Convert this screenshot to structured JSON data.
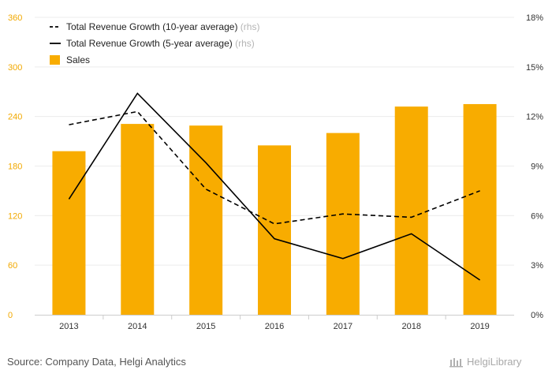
{
  "chart_data": {
    "type": "bar",
    "categories": [
      "2013",
      "2014",
      "2015",
      "2016",
      "2017",
      "2018",
      "2019"
    ],
    "series": [
      {
        "name": "Sales",
        "kind": "bar",
        "axis": "left",
        "color": "#f8ac00",
        "values": [
          198,
          231,
          229,
          205,
          220,
          252,
          255
        ]
      },
      {
        "name": "Total Revenue Growth (10-year average)",
        "kind": "line",
        "style": "dashed",
        "axis": "right",
        "color": "#000000",
        "values": [
          11.5,
          12.3,
          7.6,
          5.5,
          6.1,
          5.9,
          7.5
        ]
      },
      {
        "name": "Total Revenue Growth (5-year average)",
        "kind": "line",
        "style": "solid",
        "axis": "right",
        "color": "#000000",
        "values": [
          7.0,
          13.4,
          9.2,
          4.6,
          3.4,
          4.9,
          2.1
        ]
      }
    ],
    "left_axis": {
      "range": [
        0,
        360
      ],
      "ticks": [
        "0",
        "60",
        "120",
        "180",
        "240",
        "300",
        "360"
      ]
    },
    "right_axis": {
      "range": [
        0,
        18
      ],
      "ticks": [
        "0%",
        "3%",
        "6%",
        "9%",
        "12%",
        "15%",
        "18%"
      ]
    },
    "legend": {
      "placement": "top-left",
      "rhs_suffix": "(rhs)",
      "items": [
        {
          "label": "Total Revenue Growth (10-year average)",
          "rhs": true
        },
        {
          "label": "Total Revenue Growth (5-year average)",
          "rhs": true
        },
        {
          "label": "Sales",
          "rhs": false
        }
      ]
    },
    "grid": true
  },
  "footer": {
    "source": "Source: Company Data, Helgi Analytics",
    "brand": "HelgiLibrary"
  }
}
